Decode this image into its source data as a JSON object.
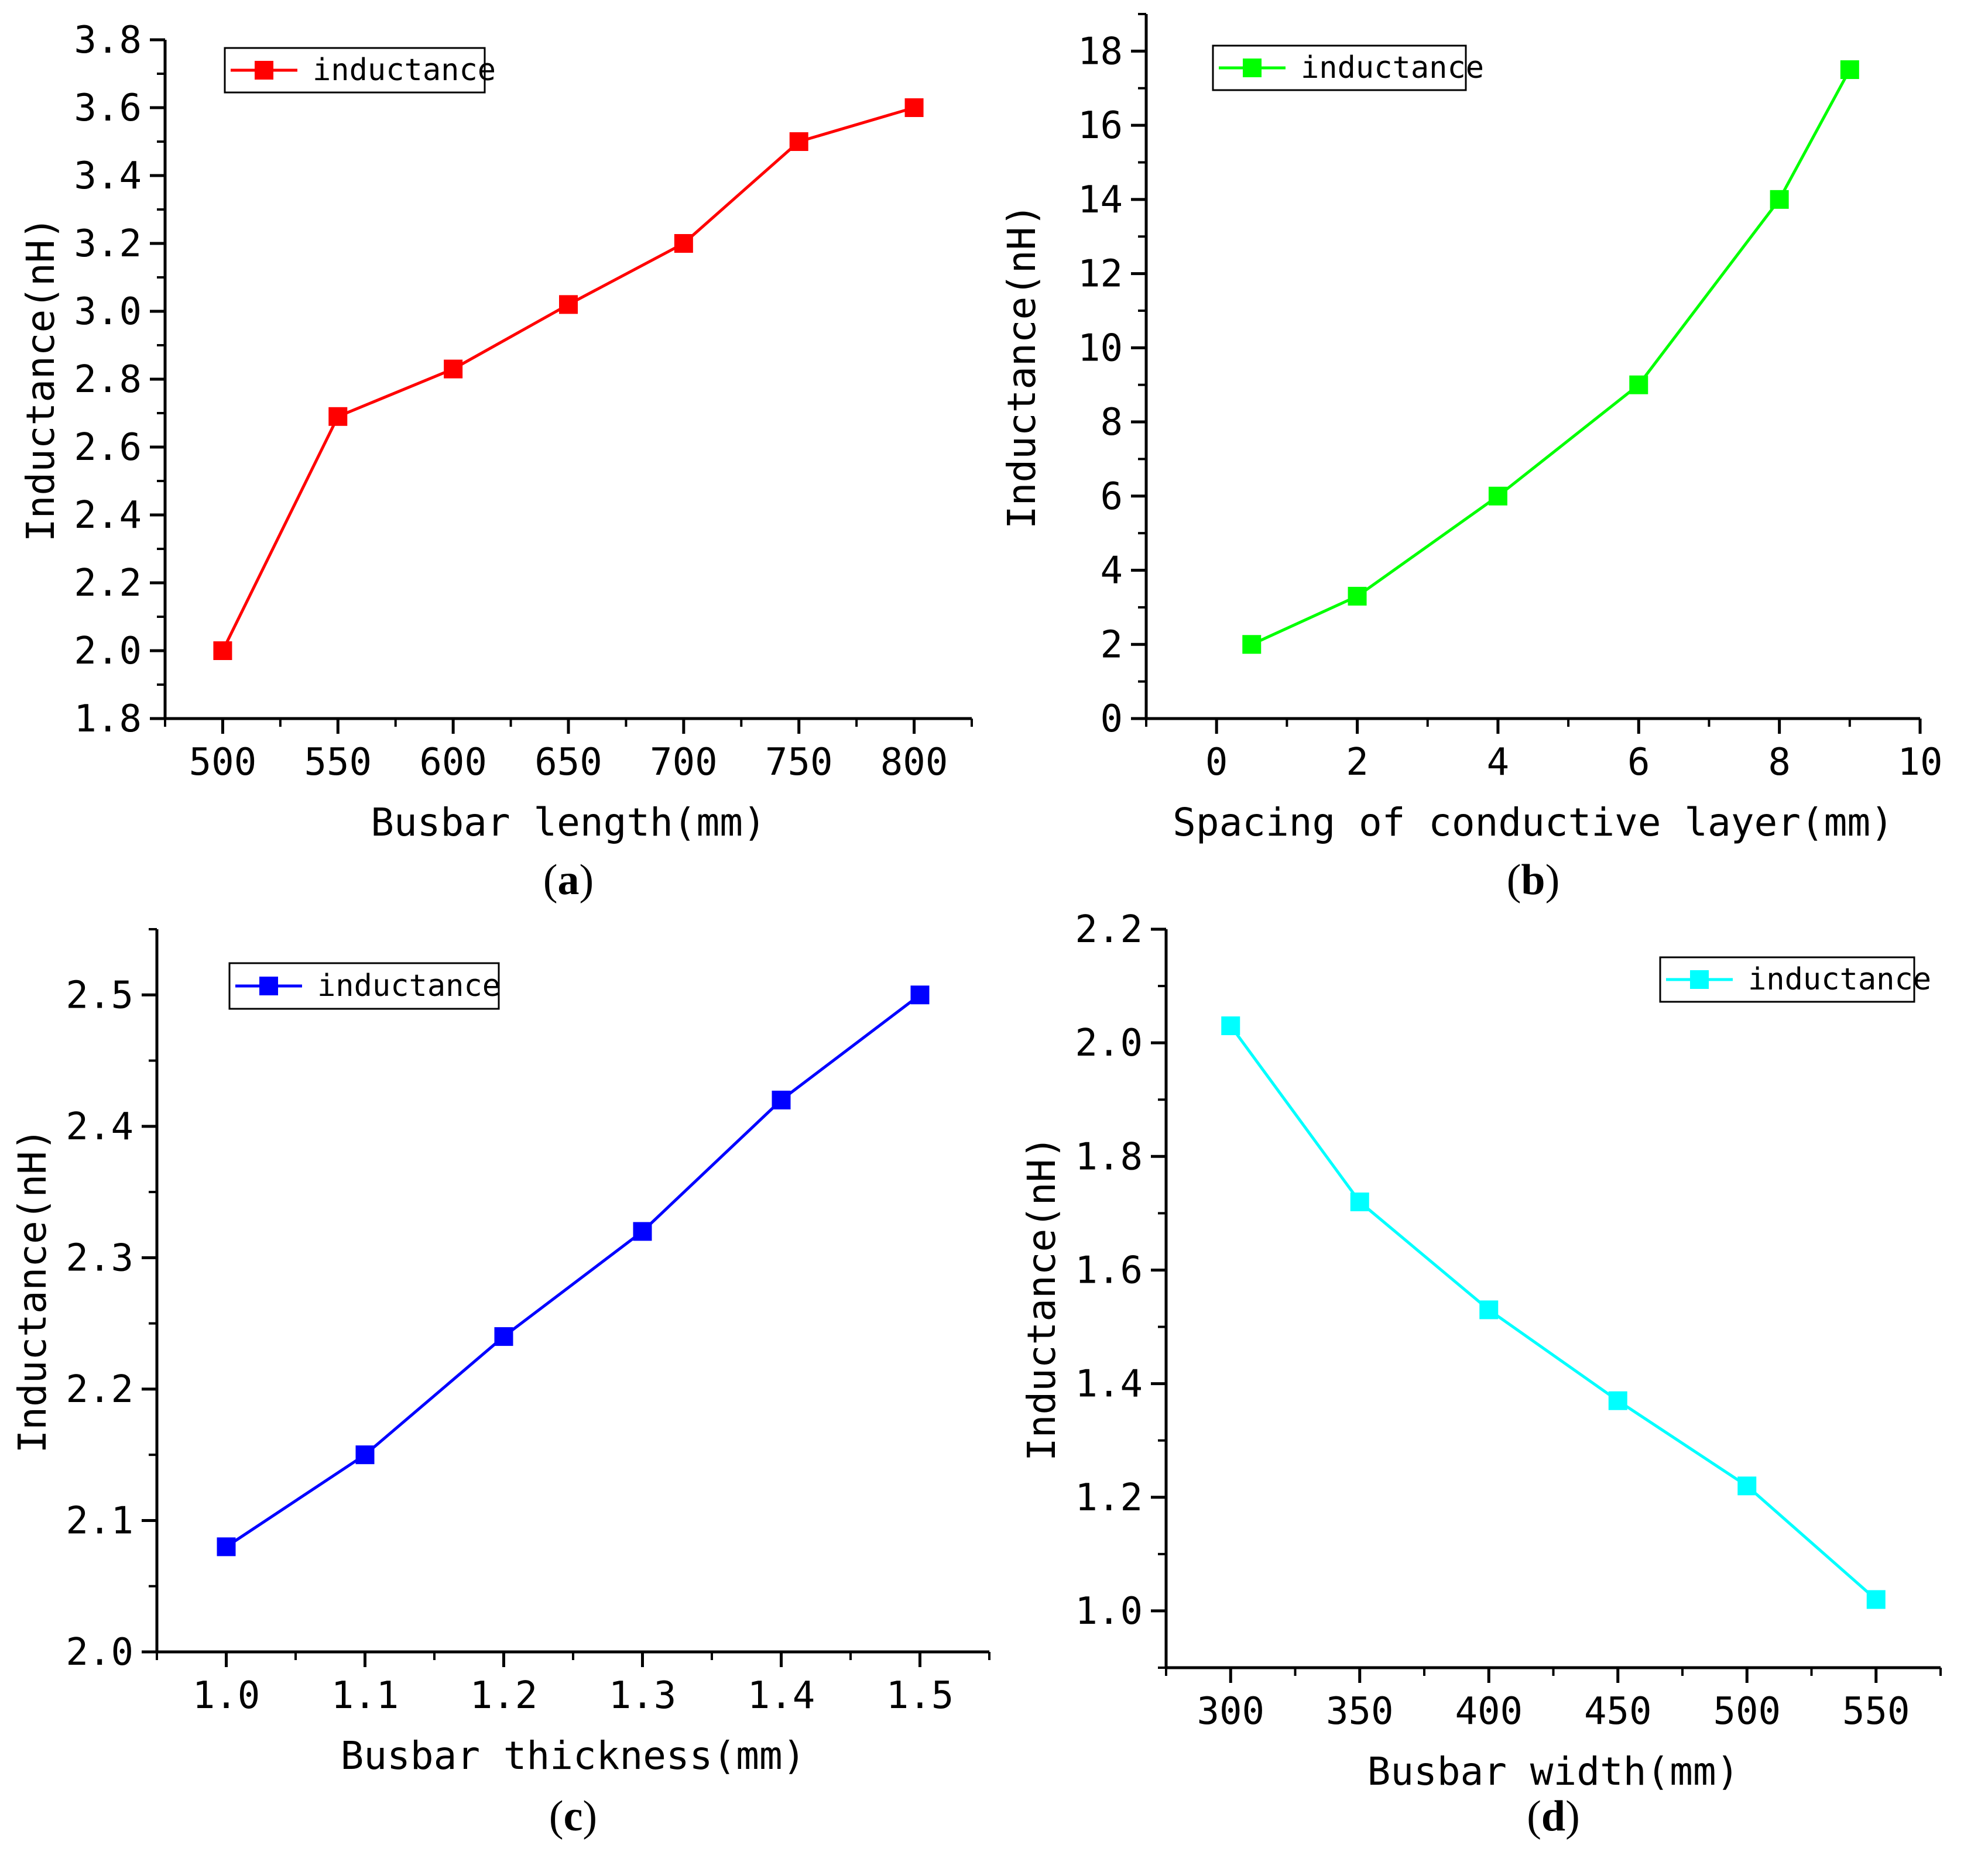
{
  "chart_data": [
    {
      "id": "a",
      "type": "line",
      "panel_label": "a",
      "xlabel": "Busbar length(mm)",
      "ylabel": "Inductance(nH)",
      "xlim": [
        475,
        825
      ],
      "ylim": [
        1.8,
        3.8
      ],
      "xticks": [
        500,
        550,
        600,
        650,
        700,
        750,
        800
      ],
      "yticks": [
        1.8,
        2.0,
        2.2,
        2.4,
        2.6,
        2.8,
        3.0,
        3.2,
        3.4,
        3.6,
        3.8
      ],
      "xtick_labels": [
        "500",
        "550",
        "600",
        "650",
        "700",
        "750",
        "800"
      ],
      "ytick_labels": [
        "1.8",
        "2.0",
        "2.2",
        "2.4",
        "2.6",
        "2.8",
        "3.0",
        "3.2",
        "3.4",
        "3.6",
        "3.8"
      ],
      "x_minor_step": 25,
      "y_minor_step": 0.1,
      "legend_position": "top-left",
      "grid": false,
      "series": [
        {
          "name": "inductance",
          "color": "#ff0000",
          "marker": "square",
          "x": [
            500,
            550,
            600,
            650,
            700,
            750,
            800
          ],
          "y": [
            2.0,
            2.69,
            2.83,
            3.02,
            3.2,
            3.5,
            3.6
          ]
        }
      ]
    },
    {
      "id": "b",
      "type": "line",
      "panel_label": "b",
      "xlabel": "Spacing of conductive layer(mm)",
      "ylabel": "Inductance(nH)",
      "xlim": [
        -1,
        10
      ],
      "ylim": [
        0,
        19
      ],
      "xticks": [
        0,
        2,
        4,
        6,
        8,
        10
      ],
      "yticks": [
        0,
        2,
        4,
        6,
        8,
        10,
        12,
        14,
        16,
        18
      ],
      "xtick_labels": [
        "0",
        "2",
        "4",
        "6",
        "8",
        "10"
      ],
      "ytick_labels": [
        "0",
        "2",
        "4",
        "6",
        "8",
        "10",
        "12",
        "14",
        "16",
        "18"
      ],
      "x_minor_step": 1,
      "y_minor_step": 1,
      "legend_position": "top-left",
      "grid": false,
      "series": [
        {
          "name": "inductance",
          "color": "#00ff00",
          "marker": "square",
          "x": [
            0.5,
            2,
            4,
            6,
            8,
            9
          ],
          "y": [
            2.0,
            3.3,
            6.0,
            9.0,
            14.0,
            17.5
          ]
        }
      ]
    },
    {
      "id": "c",
      "type": "line",
      "panel_label": "c",
      "xlabel": "Busbar thickness(mm)",
      "ylabel": "Inductance(nH)",
      "xlim": [
        0.95,
        1.55
      ],
      "ylim": [
        2.0,
        2.55
      ],
      "xticks": [
        1.0,
        1.1,
        1.2,
        1.3,
        1.4,
        1.5
      ],
      "yticks": [
        2.0,
        2.1,
        2.2,
        2.3,
        2.4,
        2.5
      ],
      "xtick_labels": [
        "1.0",
        "1.1",
        "1.2",
        "1.3",
        "1.4",
        "1.5"
      ],
      "ytick_labels": [
        "2.0",
        "2.1",
        "2.2",
        "2.3",
        "2.4",
        "2.5"
      ],
      "x_minor_step": 0.05,
      "y_minor_step": 0.05,
      "legend_position": "top-left",
      "grid": false,
      "series": [
        {
          "name": "inductance",
          "color": "#0000ff",
          "marker": "square",
          "x": [
            1.0,
            1.1,
            1.2,
            1.3,
            1.4,
            1.5
          ],
          "y": [
            2.08,
            2.15,
            2.24,
            2.32,
            2.42,
            2.5
          ]
        }
      ]
    },
    {
      "id": "d",
      "type": "line",
      "panel_label": "d",
      "xlabel": "Busbar width(mm)",
      "ylabel": "Inductance(nH)",
      "xlim": [
        275,
        575
      ],
      "ylim": [
        0.9,
        2.2
      ],
      "xticks": [
        300,
        350,
        400,
        450,
        500,
        550
      ],
      "yticks": [
        1.0,
        1.2,
        1.4,
        1.6,
        1.8,
        2.0,
        2.2
      ],
      "xtick_labels": [
        "300",
        "350",
        "400",
        "450",
        "500",
        "550"
      ],
      "ytick_labels": [
        "1.0",
        "1.2",
        "1.4",
        "1.6",
        "1.8",
        "2.0",
        "2.2"
      ],
      "x_minor_step": 25,
      "y_minor_step": 0.1,
      "legend_position": "top-right",
      "grid": false,
      "series": [
        {
          "name": "inductance",
          "color": "#00ffff",
          "marker": "square",
          "x": [
            300,
            350,
            400,
            450,
            500,
            550
          ],
          "y": [
            2.03,
            1.72,
            1.53,
            1.37,
            1.22,
            1.02
          ]
        }
      ]
    }
  ]
}
